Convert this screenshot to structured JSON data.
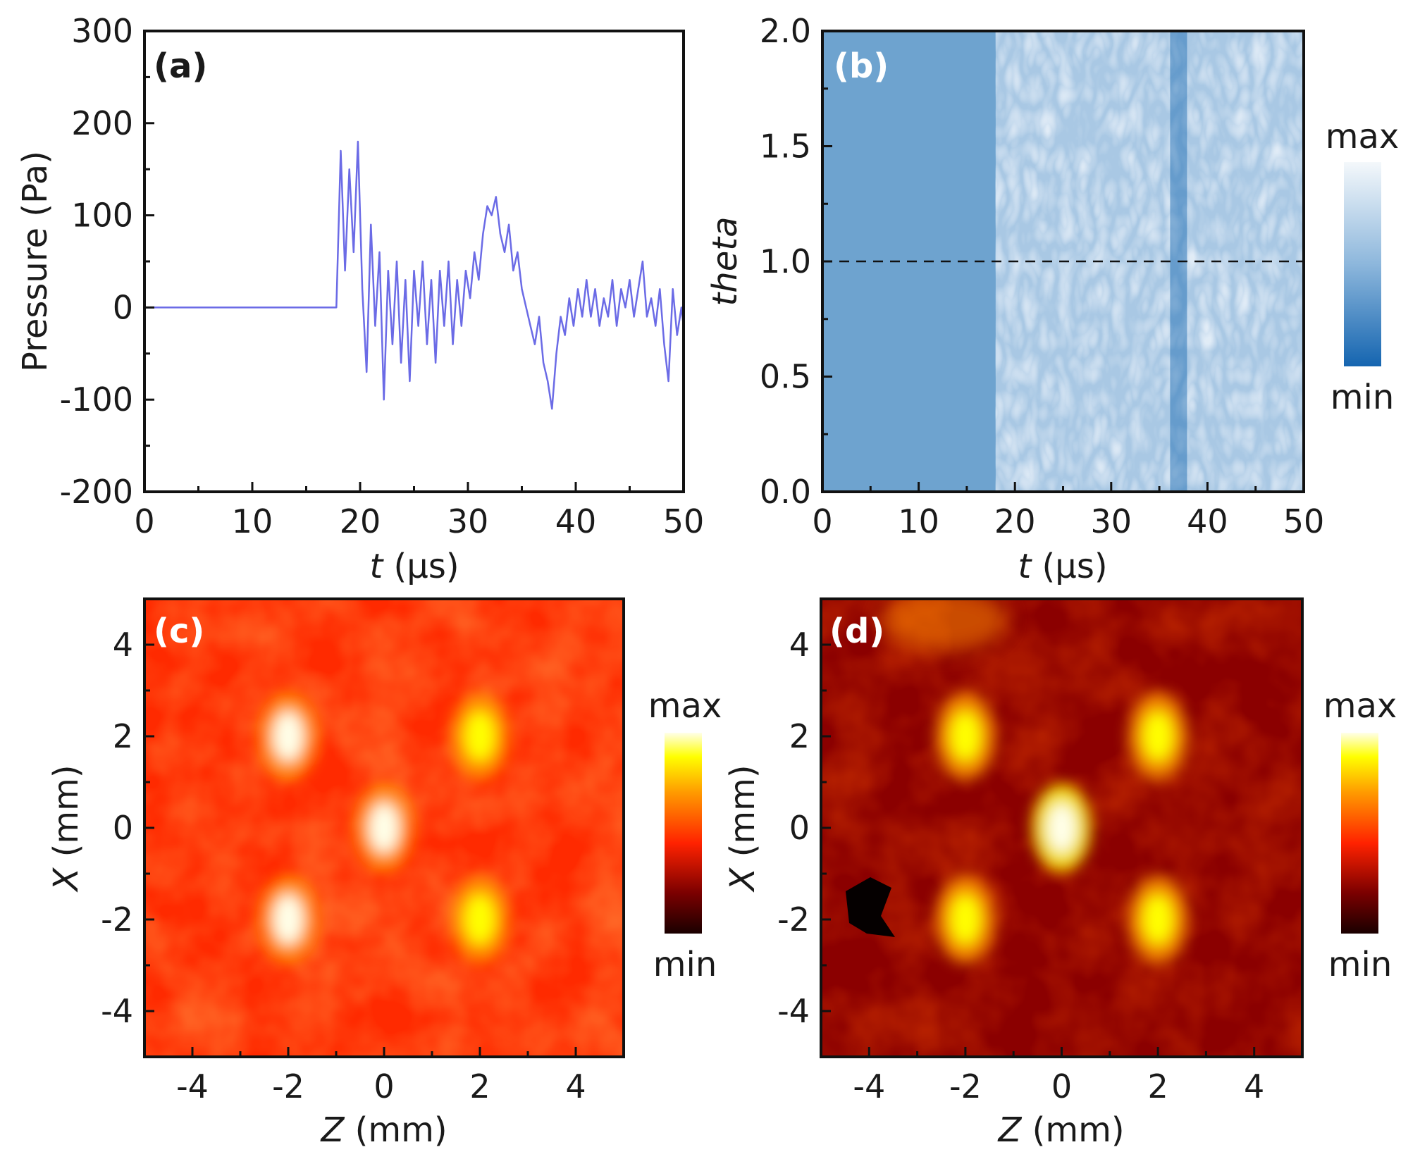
{
  "chart_data": [
    {
      "panel": "(a)",
      "type": "line",
      "xlabel_italic": "t",
      "xlabel_unit": "(μs)",
      "ylabel": "Pressure (Pa)",
      "xlim": [
        0,
        50
      ],
      "ylim": [
        -200,
        300
      ],
      "xticks": [
        0,
        10,
        20,
        30,
        40,
        50
      ],
      "yticks": [
        -200,
        -100,
        0,
        100,
        200,
        300
      ],
      "series": [
        {
          "name": "pressure",
          "color": "#6b6be6",
          "x": [
            0,
            17.8,
            18.2,
            18.6,
            19.0,
            19.4,
            19.8,
            20.2,
            20.6,
            21.0,
            21.4,
            21.8,
            22.2,
            22.6,
            23.0,
            23.4,
            23.8,
            24.2,
            24.6,
            25.0,
            25.4,
            25.8,
            26.2,
            26.6,
            27.0,
            27.4,
            27.8,
            28.2,
            28.6,
            29.0,
            29.4,
            29.8,
            30.2,
            30.6,
            31.0,
            31.4,
            31.8,
            32.2,
            32.6,
            33.0,
            33.4,
            33.8,
            34.2,
            34.6,
            35.0,
            35.4,
            35.8,
            36.2,
            36.6,
            37.0,
            37.4,
            37.8,
            38.2,
            38.6,
            39.0,
            39.4,
            39.8,
            40.2,
            40.6,
            41.0,
            41.4,
            41.8,
            42.2,
            42.6,
            43.0,
            43.4,
            43.8,
            44.2,
            44.6,
            45.0,
            45.4,
            45.8,
            46.2,
            46.6,
            47.0,
            47.4,
            47.8,
            48.2,
            48.6,
            49.0,
            49.4,
            49.8,
            50.0
          ],
          "y": [
            0,
            0,
            170,
            40,
            150,
            60,
            180,
            20,
            -70,
            90,
            -20,
            60,
            -100,
            40,
            -40,
            50,
            -60,
            30,
            -80,
            40,
            -20,
            50,
            -40,
            30,
            -60,
            40,
            -20,
            50,
            -40,
            30,
            -20,
            40,
            10,
            60,
            30,
            80,
            110,
            100,
            120,
            80,
            60,
            90,
            40,
            60,
            20,
            0,
            -20,
            -40,
            -10,
            -60,
            -80,
            -110,
            -50,
            -10,
            -30,
            10,
            -20,
            20,
            -10,
            30,
            -10,
            20,
            -20,
            10,
            -10,
            30,
            -20,
            20,
            0,
            30,
            -10,
            20,
            50,
            -10,
            10,
            -20,
            20,
            -40,
            -80,
            20,
            -30,
            0,
            -20
          ]
        }
      ]
    },
    {
      "panel": "(b)",
      "type": "heatmap",
      "xlabel_italic": "t",
      "xlabel_unit": "(μs)",
      "ylabel": "theta",
      "xlim": [
        0,
        50
      ],
      "ylim": [
        0.0,
        2.0
      ],
      "xticks": [
        0,
        10,
        20,
        30,
        40,
        50
      ],
      "yticks": [
        "0.0",
        "0.5",
        "1.0",
        "1.5",
        "2.0"
      ],
      "signal_onset": 18,
      "dark_band_at": 37,
      "dashed_line_y": 1.0,
      "colormap": [
        "#1565b0",
        "#eef3f8"
      ],
      "background_color": "#6ea3cf",
      "colorbar_max_label": "max",
      "colorbar_min_label": "min"
    },
    {
      "panel": "(c)",
      "type": "heatmap",
      "xlabel_italic": "Z",
      "xlabel_unit": "(mm)",
      "ylabel_italic": "X",
      "ylabel_unit": "(mm)",
      "xlim": [
        -5,
        5
      ],
      "ylim": [
        -5,
        5
      ],
      "xticks": [
        -4,
        -2,
        0,
        2,
        4
      ],
      "yticks": [
        -4,
        -2,
        0,
        2,
        4
      ],
      "background_level": 0.45,
      "hotspots": [
        {
          "z": -2,
          "x": 2,
          "intensity": 0.9
        },
        {
          "z": 2,
          "x": 2,
          "intensity": 0.85
        },
        {
          "z": 0,
          "x": 0,
          "intensity": 0.9
        },
        {
          "z": -2,
          "x": -2,
          "intensity": 0.9
        },
        {
          "z": 2,
          "x": -2,
          "intensity": 0.85
        }
      ],
      "colormap": [
        "#1a0000",
        "#8b0000",
        "#ff2a00",
        "#ff9a00",
        "#ffff00",
        "#ffffe8"
      ],
      "colorbar_max_label": "max",
      "colorbar_min_label": "min"
    },
    {
      "panel": "(d)",
      "type": "heatmap",
      "xlabel_italic": "Z",
      "xlabel_unit": "(mm)",
      "ylabel_italic": "X",
      "ylabel_unit": "(mm)",
      "xlim": [
        -5,
        5
      ],
      "ylim": [
        -5,
        5
      ],
      "xticks": [
        -4,
        -2,
        0,
        2,
        4
      ],
      "yticks": [
        -4,
        -2,
        0,
        2,
        4
      ],
      "background_level": 0.2,
      "hotspots": [
        {
          "z": -2,
          "x": 2,
          "intensity": 0.7
        },
        {
          "z": 2,
          "x": 2,
          "intensity": 0.7
        },
        {
          "z": 0,
          "x": 0,
          "intensity": 1.0
        },
        {
          "z": -2,
          "x": -2,
          "intensity": 0.75
        },
        {
          "z": 2,
          "x": -2,
          "intensity": 0.8
        }
      ],
      "colormap": [
        "#1a0000",
        "#8b0000",
        "#ff2a00",
        "#ff9a00",
        "#ffff00",
        "#ffffe8"
      ],
      "colorbar_max_label": "max",
      "colorbar_min_label": "min"
    }
  ]
}
